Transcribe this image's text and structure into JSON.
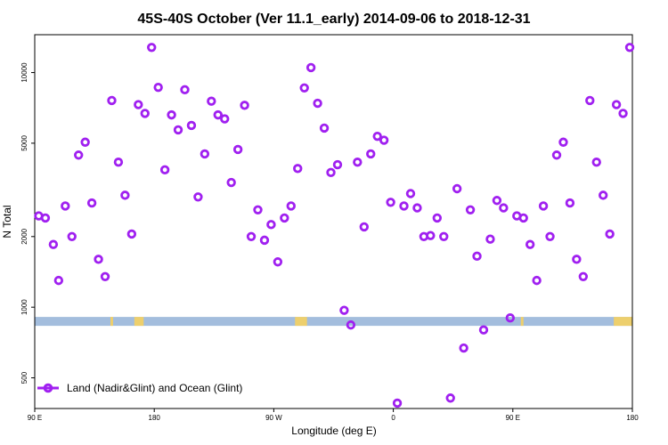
{
  "chart_data": {
    "type": "scatter",
    "title": "45S-40S October (Ver 11.1_early)   2014-09-06 to 2018-12-31",
    "xlabel": "Longitude (deg E)",
    "ylabel": "N Total",
    "x_axis": {
      "range_deg": [
        90,
        450
      ],
      "ticks": [
        {
          "value": 90,
          "label": "90 E"
        },
        {
          "value": 180,
          "label": "180"
        },
        {
          "value": 270,
          "label": "90 W"
        },
        {
          "value": 360,
          "label": "0"
        },
        {
          "value": 450,
          "label": "90 E"
        },
        {
          "value": 540,
          "label": "180"
        }
      ],
      "range": [
        90,
        540
      ]
    },
    "y_axis": {
      "scale": "log",
      "range": [
        370,
        14500
      ],
      "ticks": [
        {
          "value": 500,
          "label": "500"
        },
        {
          "value": 1000,
          "label": "1000"
        },
        {
          "value": 2000,
          "label": "2000"
        },
        {
          "value": 5000,
          "label": "5000"
        },
        {
          "value": 10000,
          "label": "10000"
        }
      ]
    },
    "legend": {
      "position": "bottom-left",
      "label": "Land (Nadir&Glint) and Ocean (Glint)"
    },
    "series": [
      {
        "name": "Land (Nadir&Glint) and Ocean (Glint)",
        "color": "#a020f0",
        "marker": "open-circle",
        "points": [
          [
            93,
            2450
          ],
          [
            98,
            2400
          ],
          [
            104,
            1850
          ],
          [
            108,
            1300
          ],
          [
            113,
            2700
          ],
          [
            118,
            2000
          ],
          [
            123,
            4450
          ],
          [
            128,
            5050
          ],
          [
            133,
            2780
          ],
          [
            138,
            1600
          ],
          [
            143,
            1350
          ],
          [
            148,
            7600
          ],
          [
            153,
            4150
          ],
          [
            158,
            3000
          ],
          [
            163,
            2050
          ],
          [
            168,
            7300
          ],
          [
            173,
            6700
          ],
          [
            178,
            12800
          ],
          [
            183,
            8650
          ],
          [
            188,
            3850
          ],
          [
            193,
            6600
          ],
          [
            198,
            5700
          ],
          [
            203,
            8450
          ],
          [
            208,
            5950
          ],
          [
            213,
            2950
          ],
          [
            218,
            4500
          ],
          [
            223,
            7550
          ],
          [
            228,
            6600
          ],
          [
            233,
            6350
          ],
          [
            238,
            3400
          ],
          [
            243,
            4700
          ],
          [
            248,
            7250
          ],
          [
            253,
            2000
          ],
          [
            258,
            2600
          ],
          [
            263,
            1930
          ],
          [
            268,
            2250
          ],
          [
            273,
            1560
          ],
          [
            278,
            2400
          ],
          [
            283,
            2700
          ],
          [
            288,
            3900
          ],
          [
            293,
            8600
          ],
          [
            298,
            10500
          ],
          [
            303,
            7400
          ],
          [
            308,
            5800
          ],
          [
            313,
            3750
          ],
          [
            318,
            4050
          ],
          [
            323,
            970
          ],
          [
            328,
            840
          ],
          [
            333,
            4150
          ],
          [
            338,
            2200
          ],
          [
            343,
            4500
          ],
          [
            348,
            5350
          ],
          [
            353,
            5150
          ],
          [
            358,
            2800
          ],
          [
            363,
            390
          ],
          [
            368,
            2700
          ],
          [
            373,
            3050
          ],
          [
            378,
            2650
          ],
          [
            383,
            2000
          ],
          [
            388,
            2020
          ],
          [
            393,
            2400
          ],
          [
            398,
            2000
          ],
          [
            403,
            410
          ],
          [
            408,
            3200
          ],
          [
            413,
            670
          ],
          [
            418,
            2600
          ],
          [
            423,
            1650
          ],
          [
            428,
            800
          ],
          [
            433,
            1950
          ],
          [
            438,
            2850
          ],
          [
            443,
            2650
          ],
          [
            448,
            900
          ],
          [
            453,
            2450
          ],
          [
            458,
            2400
          ],
          [
            463,
            1850
          ],
          [
            468,
            1300
          ],
          [
            473,
            2700
          ],
          [
            478,
            2000
          ],
          [
            483,
            4450
          ],
          [
            488,
            5050
          ],
          [
            493,
            2780
          ],
          [
            498,
            1600
          ],
          [
            503,
            1350
          ],
          [
            508,
            7600
          ],
          [
            513,
            4150
          ],
          [
            518,
            3000
          ],
          [
            523,
            2050
          ],
          [
            528,
            7300
          ],
          [
            533,
            6700
          ],
          [
            538,
            12800
          ]
        ]
      }
    ],
    "band": {
      "level": 870,
      "color": "#a3bddd",
      "land_color": "#f5d060",
      "land_segments": [
        [
          147,
          149
        ],
        [
          165,
          172
        ],
        [
          286,
          295
        ],
        [
          456,
          458
        ],
        [
          526,
          540
        ]
      ]
    },
    "grid": false
  }
}
